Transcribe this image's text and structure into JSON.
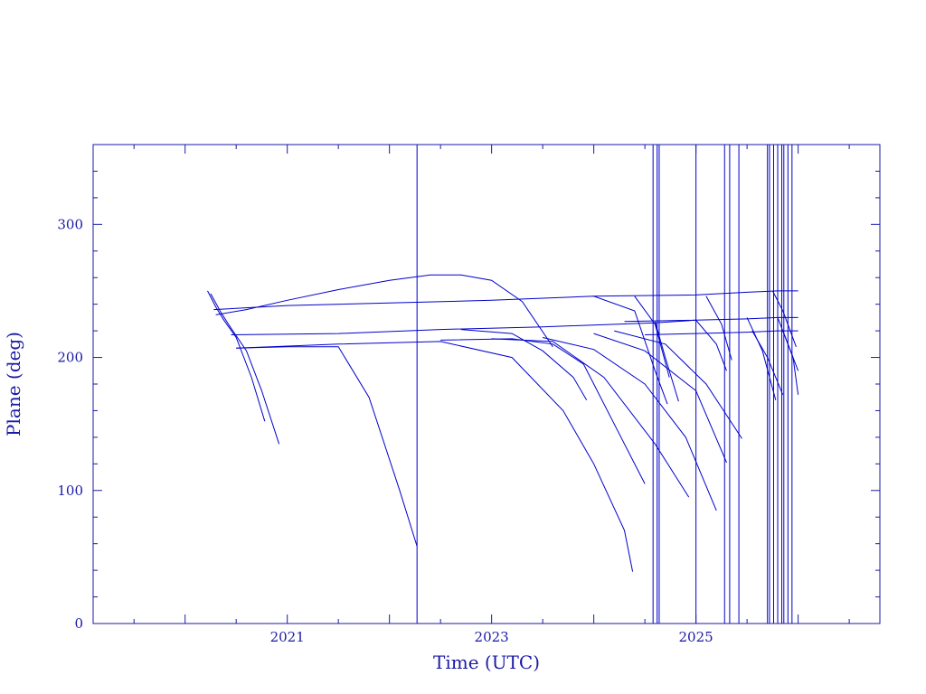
{
  "chart_data": {
    "type": "line",
    "title": "",
    "xlabel": "Time (UTC)",
    "ylabel": "Plane (deg)",
    "x_unit": "year",
    "xlim": [
      2019.1,
      2026.8
    ],
    "ylim": [
      0,
      360
    ],
    "x_ticks": [
      2021,
      2023,
      2025
    ],
    "y_ticks": [
      0,
      100,
      200,
      300
    ],
    "line_color": "#0000cc",
    "axis_color": "#1a1aa6",
    "grid": false,
    "legend": "none",
    "vertical_markers": [
      2022.27,
      2024.58,
      2024.62,
      2024.64,
      2025.0,
      2025.28,
      2025.33,
      2025.42,
      2025.7,
      2025.72,
      2025.76,
      2025.8,
      2025.84,
      2025.86,
      2025.9,
      2025.94
    ],
    "series": [
      {
        "x": [
          2020.22,
          2020.3,
          2020.38,
          2020.5,
          2020.65,
          2020.78
        ],
        "y": [
          250,
          238,
          228,
          215,
          185,
          152
        ]
      },
      {
        "x": [
          2020.25,
          2020.35,
          2020.45,
          2020.6,
          2020.75,
          2020.92
        ],
        "y": [
          248,
          234,
          222,
          205,
          175,
          135
        ]
      },
      {
        "x": [
          2020.3,
          2020.6,
          2021.0,
          2021.5,
          2022.0,
          2022.4,
          2022.7,
          2023.0,
          2023.3,
          2023.6
        ],
        "y": [
          232,
          236,
          243,
          251,
          258,
          262,
          262,
          258,
          242,
          208
        ]
      },
      {
        "x": [
          2020.28,
          2021.0,
          2022.0,
          2023.0,
          2024.0,
          2024.4,
          2024.6,
          2024.72
        ],
        "y": [
          236,
          239,
          241,
          243,
          246,
          235,
          190,
          165
        ]
      },
      {
        "x": [
          2020.45,
          2021.5,
          2022.5,
          2023.5,
          2024.6,
          2025.0,
          2025.2,
          2025.3
        ],
        "y": [
          217,
          218,
          221,
          223,
          226,
          228,
          210,
          190
        ]
      },
      {
        "x": [
          2020.5,
          2021.0,
          2021.5,
          2021.8,
          2022.1,
          2022.27
        ],
        "y": [
          207,
          208,
          208,
          170,
          100,
          58
        ]
      },
      {
        "x": [
          2020.5,
          2021.5,
          2022.5,
          2023.2,
          2023.7,
          2024.0,
          2024.3,
          2024.38
        ],
        "y": [
          207,
          210,
          212,
          200,
          160,
          120,
          70,
          39
        ]
      },
      {
        "x": [
          2022.5,
          2023.2,
          2023.6,
          2023.9,
          2024.2,
          2024.5
        ],
        "y": [
          213,
          214,
          210,
          195,
          150,
          105
        ]
      },
      {
        "x": [
          2022.7,
          2023.2,
          2023.5,
          2023.8,
          2023.93
        ],
        "y": [
          221,
          218,
          205,
          185,
          168
        ]
      },
      {
        "x": [
          2023.0,
          2023.6,
          2024.1,
          2024.6,
          2024.93
        ],
        "y": [
          214,
          212,
          185,
          135,
          95
        ]
      },
      {
        "x": [
          2023.5,
          2024.0,
          2024.5,
          2024.9,
          2025.2
        ],
        "y": [
          215,
          206,
          180,
          140,
          85
        ]
      },
      {
        "x": [
          2024.0,
          2024.5,
          2025.0,
          2025.3
        ],
        "y": [
          218,
          205,
          175,
          121
        ]
      },
      {
        "x": [
          2024.2,
          2024.7,
          2025.1,
          2025.45
        ],
        "y": [
          220,
          210,
          180,
          139
        ]
      },
      {
        "x": [
          2024.0,
          2025.0,
          2025.5,
          2025.8,
          2026.0
        ],
        "y": [
          246,
          247,
          249,
          250,
          250
        ]
      },
      {
        "x": [
          2024.3,
          2025.0,
          2025.5,
          2025.8,
          2026.0
        ],
        "y": [
          227,
          228,
          229,
          230,
          230
        ]
      },
      {
        "x": [
          2024.5,
          2025.0,
          2025.5,
          2025.8,
          2026.0
        ],
        "y": [
          217,
          218,
          219,
          220,
          220
        ]
      },
      {
        "x": [
          2024.6,
          2024.7,
          2024.83
        ],
        "y": [
          227,
          200,
          167
        ]
      },
      {
        "x": [
          2025.1,
          2025.25,
          2025.35
        ],
        "y": [
          246,
          225,
          198
        ]
      },
      {
        "x": [
          2025.5,
          2025.65,
          2025.78
        ],
        "y": [
          230,
          205,
          168
        ]
      },
      {
        "x": [
          2025.55,
          2025.7,
          2025.85
        ],
        "y": [
          220,
          200,
          172
        ]
      },
      {
        "x": [
          2025.75,
          2025.85,
          2025.98
        ],
        "y": [
          250,
          235,
          208
        ]
      },
      {
        "x": [
          2025.8,
          2025.9,
          2026.0
        ],
        "y": [
          230,
          210,
          190
        ]
      },
      {
        "x": [
          2025.85,
          2025.95,
          2026.0
        ],
        "y": [
          220,
          200,
          172
        ]
      },
      {
        "x": [
          2024.4,
          2024.6,
          2024.74
        ],
        "y": [
          246,
          225,
          185
        ]
      }
    ]
  }
}
